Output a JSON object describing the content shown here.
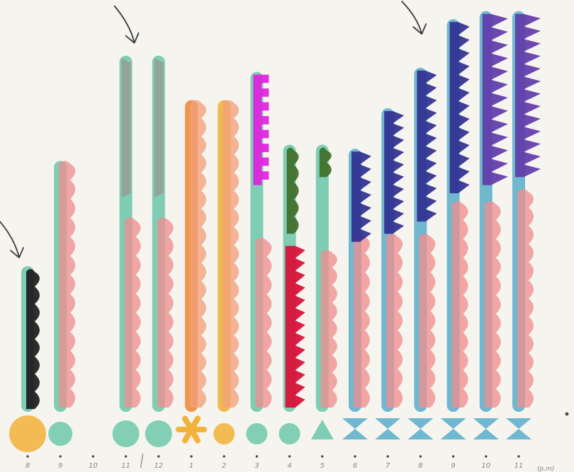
{
  "chart_data": {
    "type": "bar",
    "style": "hand-drawn pictogram",
    "categories": [
      "8",
      "9",
      "10",
      "11",
      "12",
      "1",
      "2",
      "3",
      "4",
      "5",
      "6",
      "7",
      "8",
      "9",
      "10",
      "11"
    ],
    "unit_label": "(p.m)",
    "ylim": [
      0,
      100
    ],
    "grid": false,
    "legend": "none",
    "series": [
      {
        "type": "stem",
        "values": [
          36,
          62,
          0,
          88,
          88,
          77,
          77,
          84,
          66,
          66,
          65,
          75,
          85,
          97,
          99,
          99
        ]
      },
      {
        "type": "wavy-overlay",
        "values": [
          0,
          62,
          0,
          48,
          48,
          77,
          77,
          43,
          0,
          40,
          44,
          44,
          44,
          52,
          52,
          55
        ]
      },
      {
        "type": "top-accent",
        "values": [
          36,
          0,
          0,
          88,
          88,
          0,
          0,
          84,
          66,
          66,
          65,
          75,
          85,
          97,
          99,
          99
        ]
      },
      {
        "type": "top-accent-bottom",
        "values": [
          0,
          0,
          0,
          53,
          53,
          0,
          0,
          56,
          44,
          58,
          42,
          44,
          47,
          54,
          56,
          58
        ]
      },
      {
        "type": "secondary-accent",
        "values": [
          0,
          0,
          0,
          0,
          0,
          0,
          0,
          0,
          41,
          0,
          0,
          0,
          0,
          0,
          0,
          0
        ]
      }
    ],
    "bottom_markers": [
      "circle",
      "circle",
      "none",
      "circle",
      "circle",
      "asterisk",
      "circle",
      "circle",
      "circle",
      "triangle",
      "bowtie",
      "bowtie",
      "bowtie",
      "bowtie",
      "bowtie",
      "bowtie"
    ],
    "annotations": [
      {
        "type": "arrow",
        "category_index": 0
      },
      {
        "type": "arrow",
        "category_index": 3
      },
      {
        "type": "arrow",
        "category_index": 11
      }
    ],
    "colors": {
      "stem_default": "#72c9ad",
      "stem_sky": "#62b1cc",
      "stem_orange": "#ef8a3c",
      "stem_gold": "#f2b33d",
      "wavy": "#ee8f8f",
      "wavy_under_orange": "#f2a07a",
      "grey_accent": "#9a9690",
      "black_accent": "#1c1b1b",
      "magenta_accent": "#e11fe0",
      "green_accent": "#3f6e27",
      "red_accent": "#d8123a",
      "indigo_accent": "#2f2f8f",
      "purple_accent": "#5f3aa8",
      "marker_gold": "#f2b33d",
      "marker_teal": "#72c9ad",
      "marker_sky": "#62b1cc",
      "tick_dot": "#4a4a4a",
      "arrow": "#3a3a3a"
    }
  }
}
